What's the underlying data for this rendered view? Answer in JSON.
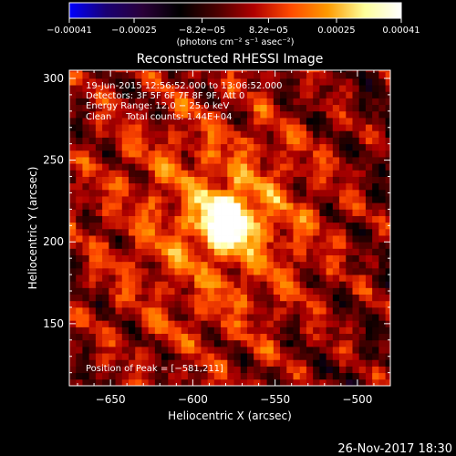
{
  "chart_data": {
    "type": "heatmap",
    "title": "Reconstructed RHESSI Image",
    "xlabel": "Heliocentric X (arcsec)",
    "ylabel": "Heliocentric Y (arcsec)",
    "xlim": [
      -675,
      -480
    ],
    "ylim": [
      112,
      305
    ],
    "x_ticks": [
      -650,
      -600,
      -550,
      -500
    ],
    "x_tick_labels": [
      "−650",
      "−600",
      "−550",
      "−500"
    ],
    "y_ticks": [
      150,
      200,
      250,
      300
    ],
    "y_tick_labels": [
      "150",
      "200",
      "250",
      "300"
    ],
    "colorbar": {
      "range": [
        -0.00041,
        0.00041
      ],
      "ticks": [
        -0.00041,
        -0.00025,
        -8.2e-05,
        8.2e-05,
        0.00025,
        0.00041
      ],
      "tick_labels": [
        "−0.00041",
        "−0.00025",
        "−8.2e−05",
        "8.2e−05",
        "0.00025",
        "0.00041"
      ],
      "units": "(photons cm⁻² s⁻¹ asec⁻²)",
      "colormap": [
        "#0000ff",
        "#1a0073",
        "#2a0038",
        "#000000",
        "#4a0000",
        "#b00000",
        "#ff4a00",
        "#ff9a00",
        "#ffff9a",
        "#ffffff"
      ]
    },
    "annotations": [
      "19-Jun-2015 12:56:52.000 to 13:06:52.000",
      "Detectors: 3F 5F 6F 7F 8F 9F, Att 0",
      "Energy Range: 12.0 − 25.0 keV",
      "Clean     Total counts: 1.44E+04"
    ],
    "peak": {
      "label": "Position of Peak = [−581,211]",
      "x": -581,
      "y": 211
    },
    "timestamp": "26-Nov-2017 18:30",
    "grid": false,
    "legend": "none"
  }
}
